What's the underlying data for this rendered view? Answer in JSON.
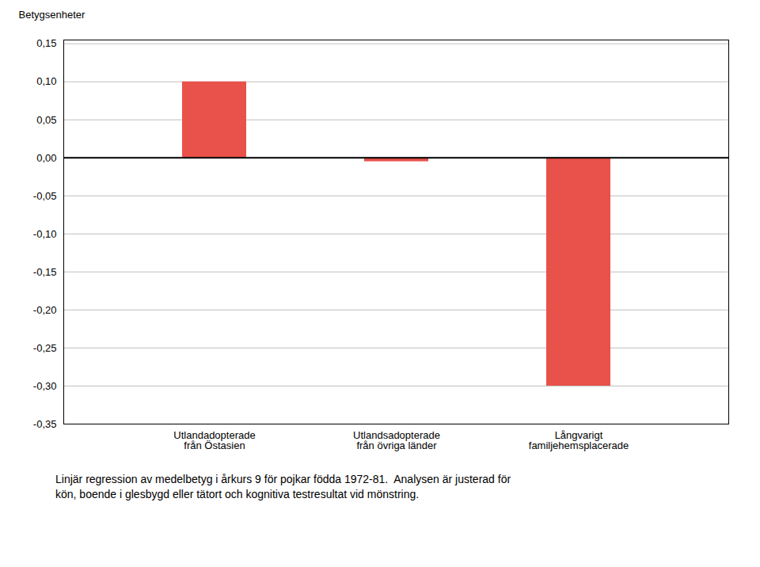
{
  "chart_data": {
    "type": "bar",
    "categories": [
      "Utlandadopterade\nfrån Östasien",
      "Utlandsadopterade\nfrån övriga länder",
      "Långvarigt\nfamiljehemsplacerade"
    ],
    "values": [
      0.1,
      -0.005,
      -0.3
    ],
    "color": "#E8524A",
    "ylabel": "Betygsenheter",
    "caption": "Linjär regression av medelbetyg i årkurs 9 för pojkar födda 1972-81.  Analysen är justerad för\nkön, boende i glesbygd eller tätort och kognitiva testresultat vid mönstring.",
    "ylim": [
      -0.35,
      0.155
    ],
    "yticks": [
      {
        "value": -0.35,
        "label": "-0,35"
      },
      {
        "value": -0.3,
        "label": "-0,30"
      },
      {
        "value": -0.25,
        "label": "-0,25"
      },
      {
        "value": -0.2,
        "label": "-0,20"
      },
      {
        "value": -0.15,
        "label": "-0,15"
      },
      {
        "value": -0.1,
        "label": "-0,10"
      },
      {
        "value": -0.05,
        "label": "-0,05"
      },
      {
        "value": 0.0,
        "label": "0,00"
      },
      {
        "value": 0.05,
        "label": "0,05"
      },
      {
        "value": 0.1,
        "label": "0,10"
      },
      {
        "value": 0.15,
        "label": "0,15"
      }
    ],
    "grid": true
  }
}
